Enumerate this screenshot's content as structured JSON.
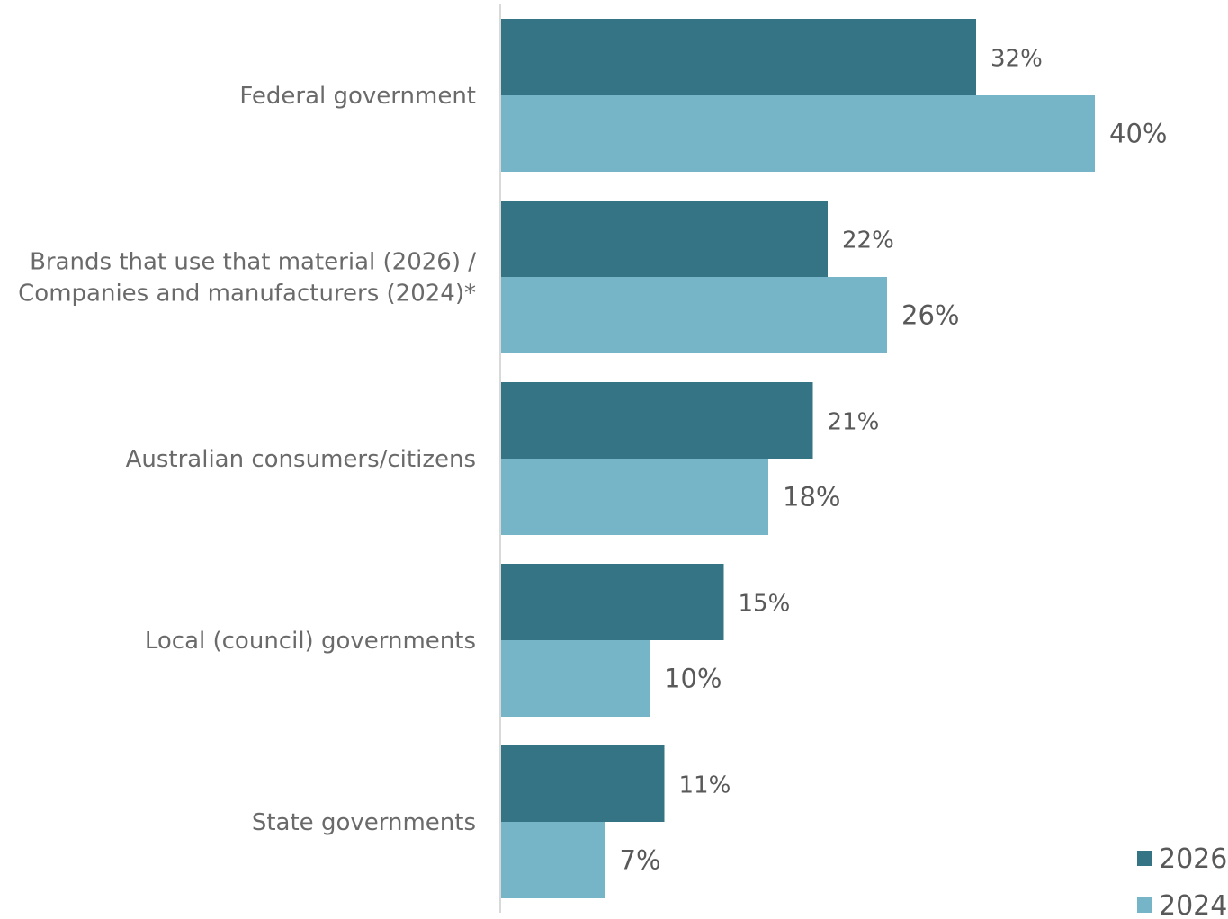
{
  "chart_data": {
    "type": "bar",
    "orientation": "horizontal",
    "categories": [
      [
        "Federal government"
      ],
      [
        "Brands that use that material (2026) /",
        "Companies and manufacturers (2024)*"
      ],
      [
        "Australian consumers/citizens"
      ],
      [
        "Local (council) governments"
      ],
      [
        "State governments"
      ]
    ],
    "series": [
      {
        "name": "2026",
        "color": "#347485",
        "values": [
          32,
          22,
          21,
          15,
          11
        ],
        "labels": [
          "32%",
          "22%",
          "21%",
          "15%",
          "11%"
        ]
      },
      {
        "name": "2024",
        "color": "#76b5c7",
        "values": [
          40,
          26,
          18,
          10,
          7
        ],
        "labels": [
          "40%",
          "26%",
          "18%",
          "10%",
          "7%"
        ]
      }
    ],
    "xlim": [
      0,
      40
    ],
    "grid": false,
    "legend": "bottom-right",
    "value_format": "percent"
  }
}
